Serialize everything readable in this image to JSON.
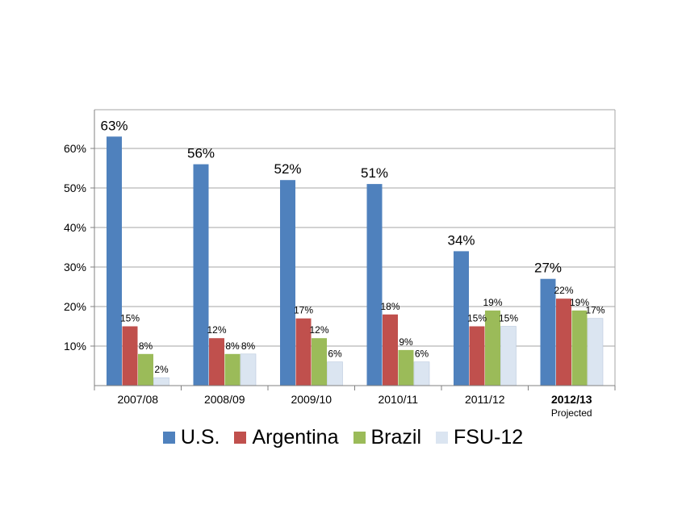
{
  "chart_data": {
    "type": "bar",
    "categories": [
      "2007/08",
      "2008/09",
      "2009/10",
      "2010/11",
      "2011/12",
      "2012/13"
    ],
    "category_notes": [
      "",
      "",
      "",
      "",
      "",
      "Projected"
    ],
    "bold_categories": [
      "2012/13"
    ],
    "series": [
      {
        "name": "U.S.",
        "color": "#4f81bd",
        "values": [
          63,
          56,
          52,
          51,
          34,
          27
        ],
        "labels": [
          "63%",
          "56%",
          "52%",
          "51%",
          "34%",
          "27%"
        ]
      },
      {
        "name": "Argentina",
        "color": "#c0504d",
        "values": [
          15,
          12,
          17,
          18,
          15,
          22
        ],
        "labels": [
          "15%",
          "12%",
          "17%",
          "18%",
          "15%",
          "22%"
        ]
      },
      {
        "name": "Brazil",
        "color": "#9bbb59",
        "values": [
          8,
          8,
          12,
          9,
          19,
          19
        ],
        "labels": [
          "8%",
          "8%",
          "12%",
          "9%",
          "19%",
          "19%"
        ]
      },
      {
        "name": "FSU-12",
        "color": "#dbe5f1",
        "values": [
          2,
          8,
          6,
          6,
          15,
          17
        ],
        "labels": [
          "2%",
          "8%",
          "6%",
          "6%",
          "15%",
          "17%"
        ]
      }
    ],
    "ylim": [
      0,
      60
    ],
    "yticks": [
      "10%",
      "20%",
      "30%",
      "40%",
      "50%",
      "60%"
    ],
    "grid": true,
    "legend_position": "bottom",
    "title": "",
    "xlabel": "",
    "ylabel": ""
  }
}
